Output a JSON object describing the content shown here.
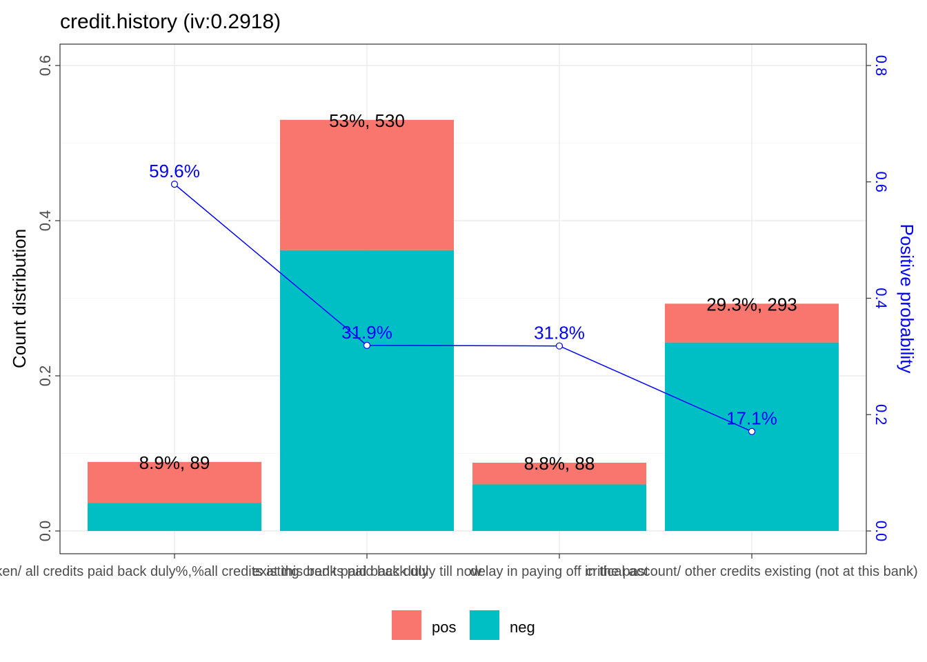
{
  "chart_data": {
    "type": "bar",
    "title": "credit.history  (iv:0.2918)",
    "ylabel": "Count distribution",
    "ylabel_right": "Positive probability",
    "xlabel": "",
    "ylim": [
      0,
      0.6
    ],
    "ylim_right": [
      0,
      0.8
    ],
    "yticks": [
      "0.0",
      "0.2",
      "0.4",
      "0.6"
    ],
    "yticks_right": [
      "0.0",
      "0.2",
      "0.4",
      "0.6",
      "0.8"
    ],
    "categories": [
      "no credits taken/ all credits paid back duly%,%all credits at this bank paid back duly",
      "existing credits paid back duly till now",
      "delay in paying off in the past",
      "critical account/ other credits existing (not at this bank)"
    ],
    "series": [
      {
        "name": "pos",
        "values": [
          0.053,
          0.168,
          0.028,
          0.05
        ]
      },
      {
        "name": "neg",
        "values": [
          0.036,
          0.362,
          0.06,
          0.243
        ]
      }
    ],
    "bar_labels": [
      "8.9%, 89",
      "53%, 530",
      "8.8%, 88",
      "29.3%, 293"
    ],
    "line": {
      "name": "Positive probability",
      "values": [
        0.596,
        0.319,
        0.318,
        0.171
      ],
      "labels": [
        "59.6%",
        "31.9%",
        "31.8%",
        "17.1%"
      ]
    },
    "grid": true,
    "legend": {
      "position": "bottom",
      "entries": [
        "pos",
        "neg"
      ]
    },
    "colors": {
      "pos": "#F8766D",
      "neg": "#00BFC4",
      "line": "#0000FF"
    }
  }
}
